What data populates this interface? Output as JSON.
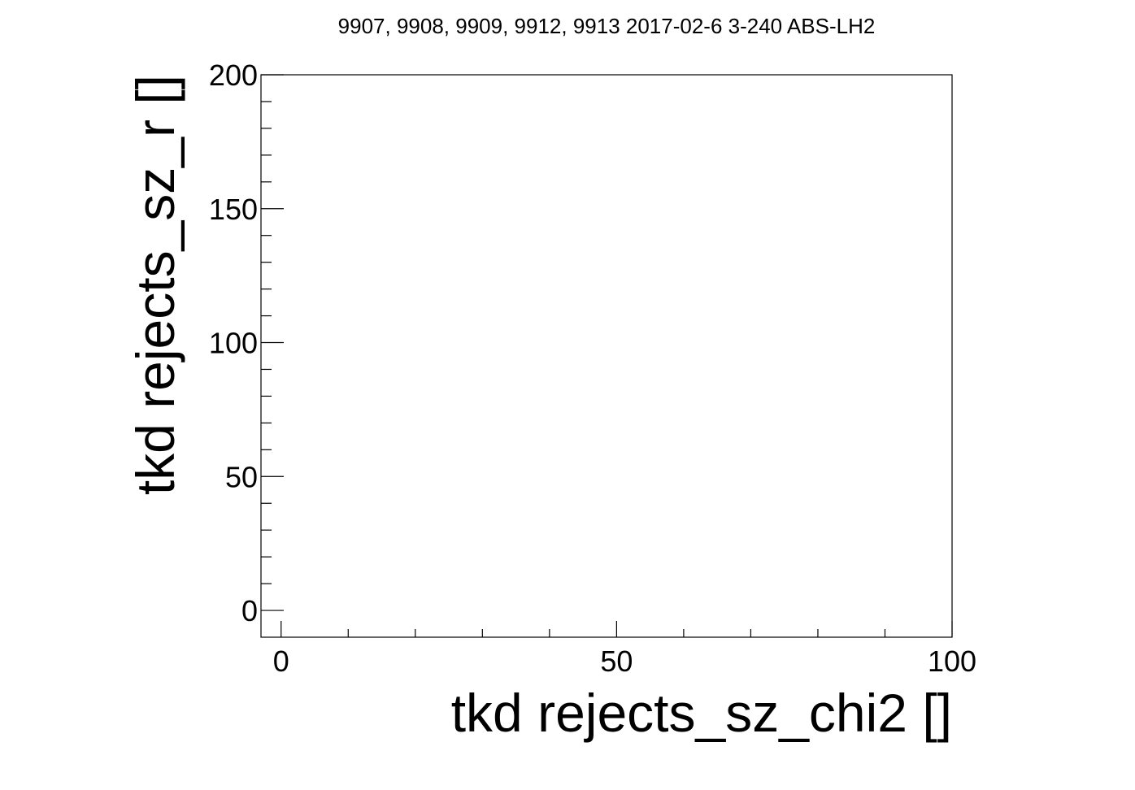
{
  "chart_data": {
    "type": "scatter",
    "title": "9907, 9908, 9909, 9912, 9913 2017-02-6 3-240 ABS-LH2",
    "xlabel": "tkd rejects_sz_chi2 []",
    "ylabel": "tkd rejects_sz_r []",
    "xlim": [
      -3,
      100
    ],
    "ylim": [
      -10,
      200
    ],
    "x_ticks": [
      0,
      50,
      100
    ],
    "y_ticks": [
      0,
      50,
      100,
      150,
      200
    ],
    "x_minor_step": 10,
    "y_minor_step": 10,
    "grid": false,
    "series": []
  },
  "colors": {
    "background": "#ffffff",
    "axis": "#000000"
  }
}
